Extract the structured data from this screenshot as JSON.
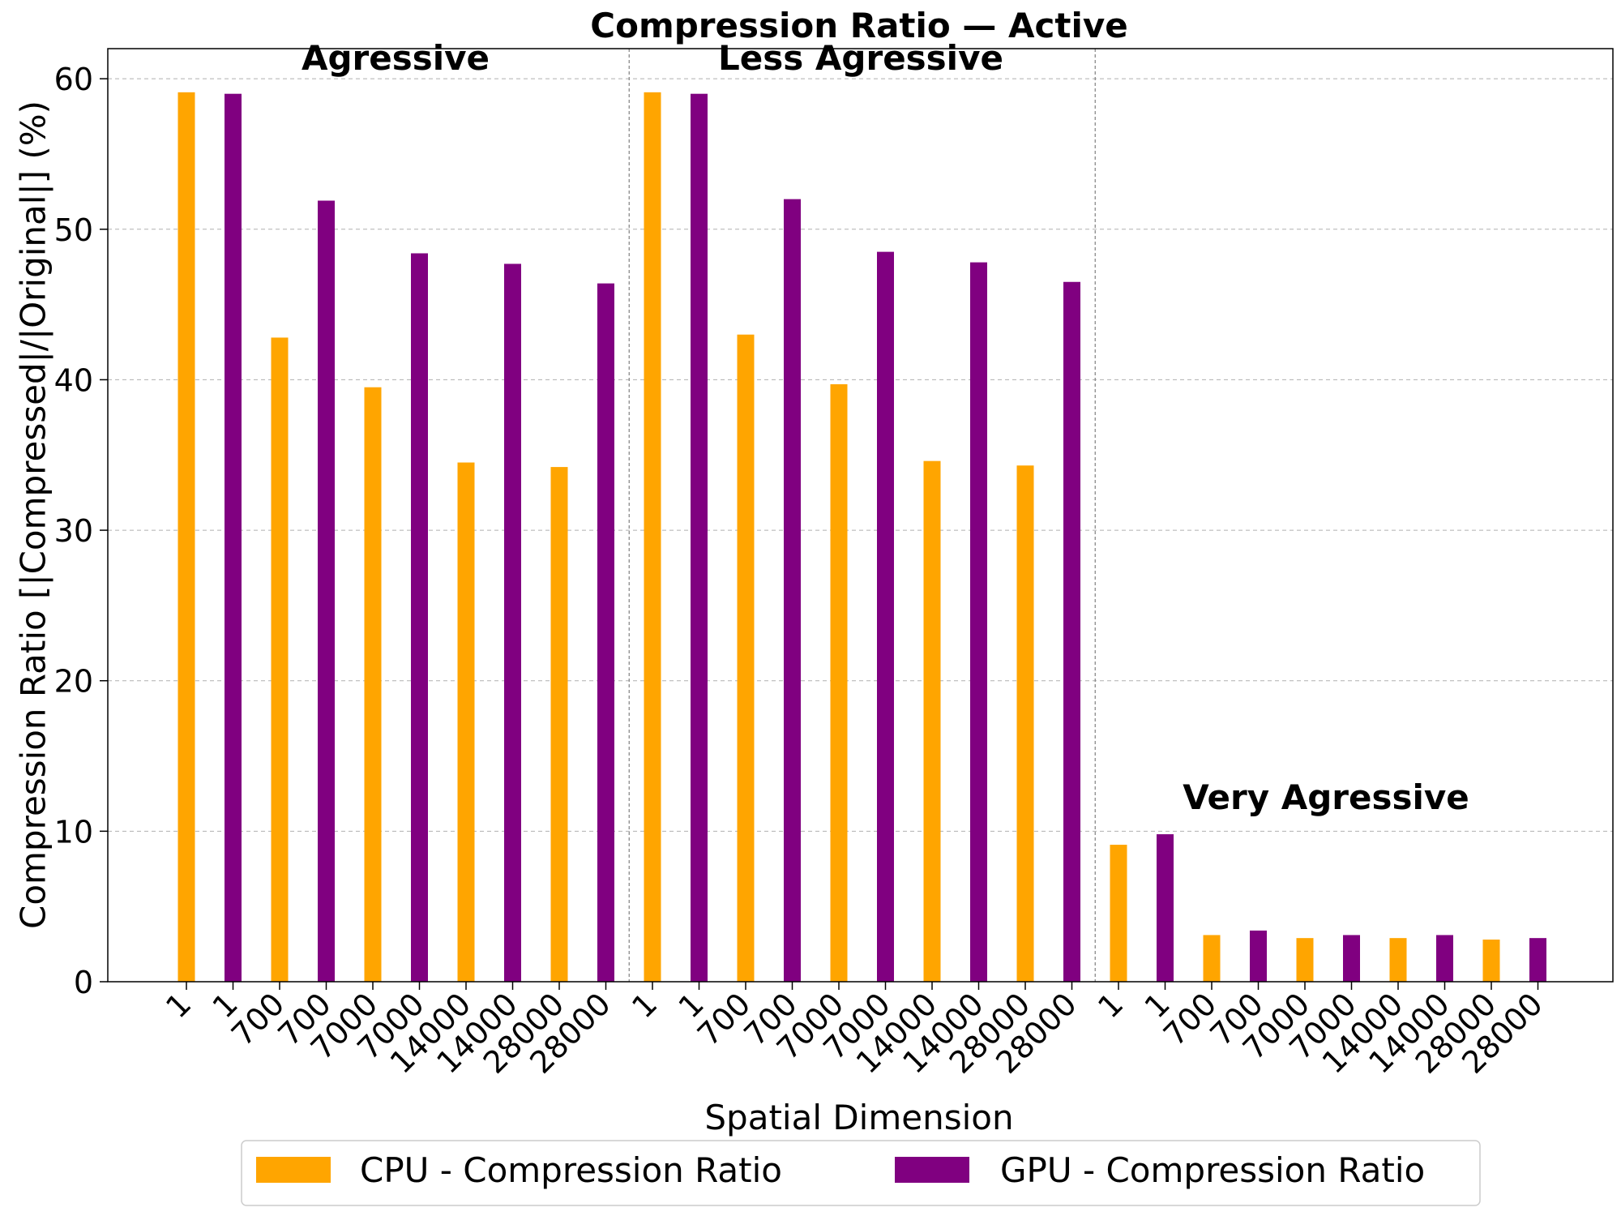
{
  "chart_data": {
    "type": "bar",
    "title": "Compression Ratio — Active",
    "xlabel": "Spatial Dimension",
    "ylabel": "Compression Ratio [|Compressed|/|Original|] (%)",
    "ylim": [
      0,
      62
    ],
    "yticks": [
      0,
      10,
      20,
      30,
      40,
      50,
      60
    ],
    "grid": true,
    "legend_position": "bottom-center",
    "colors": {
      "cpu": "#FFA500",
      "gpu": "#800080"
    },
    "series_names": [
      "CPU - Compression Ratio",
      "GPU - Compression Ratio"
    ],
    "groups": [
      {
        "label": "Agressive",
        "bars": [
          {
            "tick": "1",
            "series": "cpu",
            "value": 59.1
          },
          {
            "tick": "1",
            "series": "gpu",
            "value": 59.0
          },
          {
            "tick": "700",
            "series": "cpu",
            "value": 42.8
          },
          {
            "tick": "700",
            "series": "gpu",
            "value": 51.9
          },
          {
            "tick": "7000",
            "series": "cpu",
            "value": 39.5
          },
          {
            "tick": "7000",
            "series": "gpu",
            "value": 48.4
          },
          {
            "tick": "14000",
            "series": "cpu",
            "value": 34.5
          },
          {
            "tick": "14000",
            "series": "gpu",
            "value": 47.7
          },
          {
            "tick": "28000",
            "series": "cpu",
            "value": 34.2
          },
          {
            "tick": "28000",
            "series": "gpu",
            "value": 46.4
          }
        ]
      },
      {
        "label": "Less Agressive",
        "bars": [
          {
            "tick": "1",
            "series": "cpu",
            "value": 59.1
          },
          {
            "tick": "1",
            "series": "gpu",
            "value": 59.0
          },
          {
            "tick": "700",
            "series": "cpu",
            "value": 43.0
          },
          {
            "tick": "700",
            "series": "gpu",
            "value": 52.0
          },
          {
            "tick": "7000",
            "series": "cpu",
            "value": 39.7
          },
          {
            "tick": "7000",
            "series": "gpu",
            "value": 48.5
          },
          {
            "tick": "14000",
            "series": "cpu",
            "value": 34.6
          },
          {
            "tick": "14000",
            "series": "gpu",
            "value": 47.8
          },
          {
            "tick": "28000",
            "series": "cpu",
            "value": 34.3
          },
          {
            "tick": "28000",
            "series": "gpu",
            "value": 46.5
          }
        ]
      },
      {
        "label": "Very Agressive",
        "bars": [
          {
            "tick": "1",
            "series": "cpu",
            "value": 9.1
          },
          {
            "tick": "1",
            "series": "gpu",
            "value": 9.8
          },
          {
            "tick": "700",
            "series": "cpu",
            "value": 3.1
          },
          {
            "tick": "700",
            "series": "gpu",
            "value": 3.4
          },
          {
            "tick": "7000",
            "series": "cpu",
            "value": 2.9
          },
          {
            "tick": "7000",
            "series": "gpu",
            "value": 3.1
          },
          {
            "tick": "14000",
            "series": "cpu",
            "value": 2.9
          },
          {
            "tick": "14000",
            "series": "gpu",
            "value": 3.1
          },
          {
            "tick": "28000",
            "series": "cpu",
            "value": 2.8
          },
          {
            "tick": "28000",
            "series": "gpu",
            "value": 2.9
          }
        ]
      }
    ]
  }
}
